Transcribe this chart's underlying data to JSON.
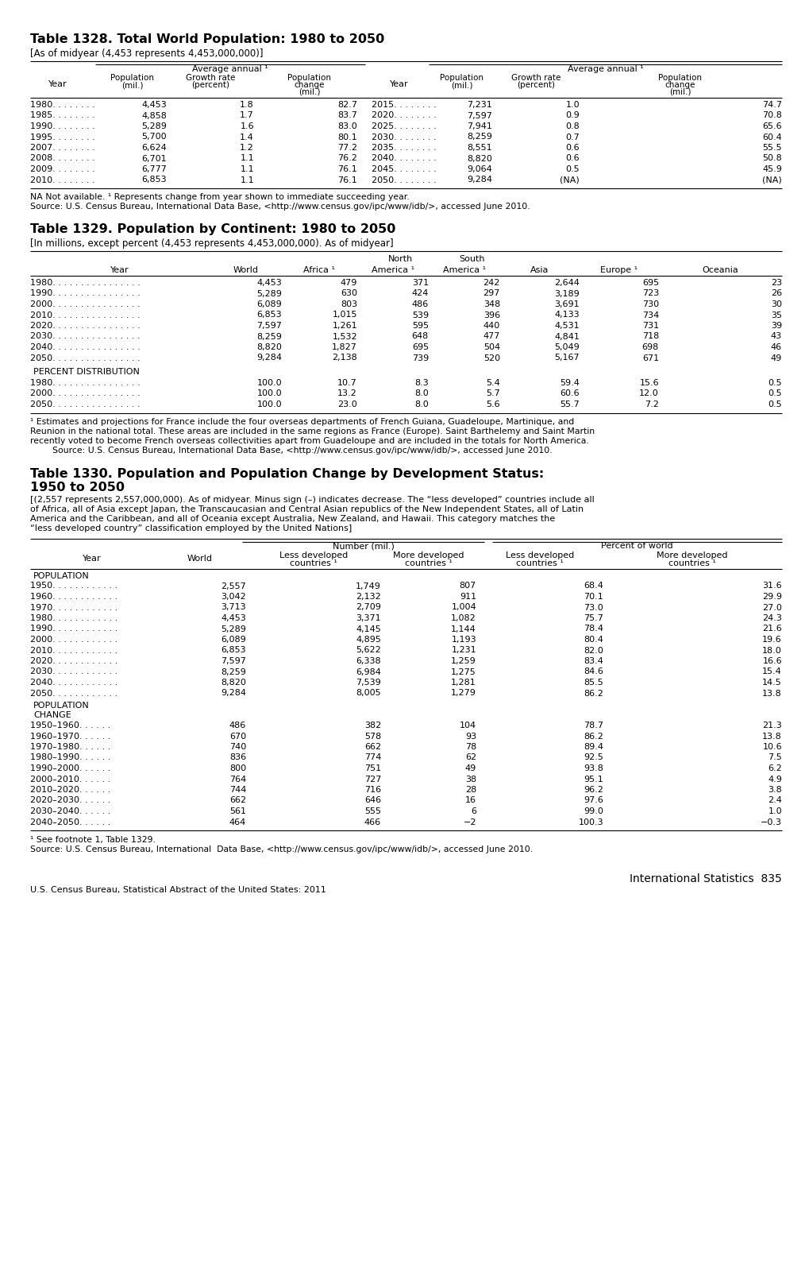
{
  "page_bg": "#ffffff",
  "table1328": {
    "title": "Table 1328. Total World Population: 1980 to 2050",
    "subtitle": "[As of midyear (4,453 represents 4,453,000,000)]",
    "avg_annual_span1": "Average annual ¹",
    "avg_annual_span2": "Average annual ¹",
    "rows": [
      [
        "1980. . . . . . . .",
        "4,453",
        "1.8",
        "82.7",
        "2015. . . . . . . .",
        "7,231",
        "1.0",
        "74.7"
      ],
      [
        "1985. . . . . . . .",
        "4,858",
        "1.7",
        "83.7",
        "2020. . . . . . . .",
        "7,597",
        "0.9",
        "70.8"
      ],
      [
        "1990. . . . . . . .",
        "5,289",
        "1.6",
        "83.0",
        "2025. . . . . . . .",
        "7,941",
        "0.8",
        "65.6"
      ],
      [
        "1995. . . . . . . .",
        "5,700",
        "1.4",
        "80.1",
        "2030. . . . . . . .",
        "8,259",
        "0.7",
        "60.4"
      ],
      [
        "2007. . . . . . . .",
        "6,624",
        "1.2",
        "77.2",
        "2035. . . . . . . .",
        "8,551",
        "0.6",
        "55.5"
      ],
      [
        "2008. . . . . . . .",
        "6,701",
        "1.1",
        "76.2",
        "2040. . . . . . . .",
        "8,820",
        "0.6",
        "50.8"
      ],
      [
        "2009. . . . . . . .",
        "6,777",
        "1.1",
        "76.1",
        "2045. . . . . . . .",
        "9,064",
        "0.5",
        "45.9"
      ],
      [
        "2010. . . . . . . .",
        "6,853",
        "1.1",
        "76.1",
        "2050. . . . . . . .",
        "9,284",
        "(NA)",
        "(NA)"
      ]
    ],
    "footnote1": "NA Not available. ¹ Represents change from year shown to immediate succeeding year.",
    "footnote2": "Source: U.S. Census Bureau, International Data Base, <http://www.census.gov/ipc/www/idb/>, accessed June 2010."
  },
  "table1329": {
    "title": "Table 1329. Population by Continent: 1980 to 2050",
    "subtitle": "[In millions, except percent (4,453 represents 4,453,000,000). As of midyear]",
    "rows": [
      [
        "1980. . . . . . . . . . . . . . . .",
        "4,453",
        "479",
        "371",
        "242",
        "2,644",
        "695",
        "23"
      ],
      [
        "1990. . . . . . . . . . . . . . . .",
        "5,289",
        "630",
        "424",
        "297",
        "3,189",
        "723",
        "26"
      ],
      [
        "2000. . . . . . . . . . . . . . . .",
        "6,089",
        "803",
        "486",
        "348",
        "3,691",
        "730",
        "30"
      ],
      [
        "2010. . . . . . . . . . . . . . . .",
        "6,853",
        "1,015",
        "539",
        "396",
        "4,133",
        "734",
        "35"
      ],
      [
        "2020. . . . . . . . . . . . . . . .",
        "7,597",
        "1,261",
        "595",
        "440",
        "4,531",
        "731",
        "39"
      ],
      [
        "2030. . . . . . . . . . . . . . . .",
        "8,259",
        "1,532",
        "648",
        "477",
        "4,841",
        "718",
        "43"
      ],
      [
        "2040. . . . . . . . . . . . . . . .",
        "8,820",
        "1,827",
        "695",
        "504",
        "5,049",
        "698",
        "46"
      ],
      [
        "2050. . . . . . . . . . . . . . . .",
        "9,284",
        "2,138",
        "739",
        "520",
        "5,167",
        "671",
        "49"
      ]
    ],
    "pct_header": "PERCENT DISTRIBUTION",
    "pct_rows": [
      [
        "1980. . . . . . . . . . . . . . . .",
        "100.0",
        "10.7",
        "8.3",
        "5.4",
        "59.4",
        "15.6",
        "0.5"
      ],
      [
        "2000. . . . . . . . . . . . . . . .",
        "100.0",
        "13.2",
        "8.0",
        "5.7",
        "60.6",
        "12.0",
        "0.5"
      ],
      [
        "2050. . . . . . . . . . . . . . . .",
        "100.0",
        "23.0",
        "8.0",
        "5.6",
        "55.7",
        "7.2",
        "0.5"
      ]
    ],
    "footnote1": "¹ Estimates and projections for France include the four overseas departments of French Guiana, Guadeloupe, Martinique, and",
    "footnote2": "Reunion in the national total. These areas are included in the same regions as France (Europe). Saint Barthelemy and Saint Martin",
    "footnote3": "recently voted to become French overseas collectivities apart from Guadeloupe and are included in the totals for North America.",
    "footnote4": "    Source: U.S. Census Bureau, International Data Base, <http://www.census.gov/ipc/www/idb/>, accessed June 2010."
  },
  "table1330": {
    "title1": "Table 1330. Population and Population Change by Development Status:",
    "title2": "1950 to 2050",
    "subtitle_lines": [
      "[(2,557 represents 2,557,000,000). As of midyear. Minus sign (–) indicates decrease. The “less developed” countries include all",
      "of Africa, all of Asia except Japan, the Transcaucasian and Central Asian republics of the New Independent States, all of Latin",
      "America and the Caribbean, and all of Oceania except Australia, New Zealand, and Hawaii. This category matches the",
      "“less developed country” classification employed by the United Nations]"
    ],
    "col_header_main1": "Number (mil.)",
    "col_header_main2": "Percent of world",
    "pop_header": "POPULATION",
    "pop_rows": [
      [
        "1950. . . . . . . . . . . .",
        "2,557",
        "1,749",
        "807",
        "68.4",
        "31.6"
      ],
      [
        "1960. . . . . . . . . . . .",
        "3,042",
        "2,132",
        "911",
        "70.1",
        "29.9"
      ],
      [
        "1970. . . . . . . . . . . .",
        "3,713",
        "2,709",
        "1,004",
        "73.0",
        "27.0"
      ],
      [
        "1980. . . . . . . . . . . .",
        "4,453",
        "3,371",
        "1,082",
        "75.7",
        "24.3"
      ],
      [
        "1990. . . . . . . . . . . .",
        "5,289",
        "4,145",
        "1,144",
        "78.4",
        "21.6"
      ],
      [
        "2000. . . . . . . . . . . .",
        "6,089",
        "4,895",
        "1,193",
        "80.4",
        "19.6"
      ],
      [
        "2010. . . . . . . . . . . .",
        "6,853",
        "5,622",
        "1,231",
        "82.0",
        "18.0"
      ],
      [
        "2020. . . . . . . . . . . .",
        "7,597",
        "6,338",
        "1,259",
        "83.4",
        "16.6"
      ],
      [
        "2030. . . . . . . . . . . .",
        "8,259",
        "6,984",
        "1,275",
        "84.6",
        "15.4"
      ],
      [
        "2040. . . . . . . . . . . .",
        "8,820",
        "7,539",
        "1,281",
        "85.5",
        "14.5"
      ],
      [
        "2050. . . . . . . . . . . .",
        "9,284",
        "8,005",
        "1,279",
        "86.2",
        "13.8"
      ]
    ],
    "chg_header1": "POPULATION",
    "chg_header2": "CHANGE",
    "chg_rows": [
      [
        "1950–1960. . . . . .",
        "486",
        "382",
        "104",
        "78.7",
        "21.3"
      ],
      [
        "1960–1970. . . . . .",
        "670",
        "578",
        "93",
        "86.2",
        "13.8"
      ],
      [
        "1970–1980. . . . . .",
        "740",
        "662",
        "78",
        "89.4",
        "10.6"
      ],
      [
        "1980–1990. . . . . .",
        "836",
        "774",
        "62",
        "92.5",
        "7.5"
      ],
      [
        "1990–2000. . . . . .",
        "800",
        "751",
        "49",
        "93.8",
        "6.2"
      ],
      [
        "2000–2010. . . . . .",
        "764",
        "727",
        "38",
        "95.1",
        "4.9"
      ],
      [
        "2010–2020. . . . . .",
        "744",
        "716",
        "28",
        "96.2",
        "3.8"
      ],
      [
        "2020–2030. . . . . .",
        "662",
        "646",
        "16",
        "97.6",
        "2.4"
      ],
      [
        "2030–2040. . . . . .",
        "561",
        "555",
        "6",
        "99.0",
        "1.0"
      ],
      [
        "2040–2050. . . . . .",
        "464",
        "466",
        "−2",
        "100.3",
        "−0.3"
      ]
    ],
    "footnote1": "¹ See footnote 1, Table 1329.",
    "footnote2": "Source: U.S. Census Bureau, International  Data Base, <http://www.census.gov/ipc/www/idb/>, accessed June 2010."
  },
  "footer_right": "International Statistics  835",
  "footer_left": "U.S. Census Bureau, Statistical Abstract of the United States: 2011"
}
